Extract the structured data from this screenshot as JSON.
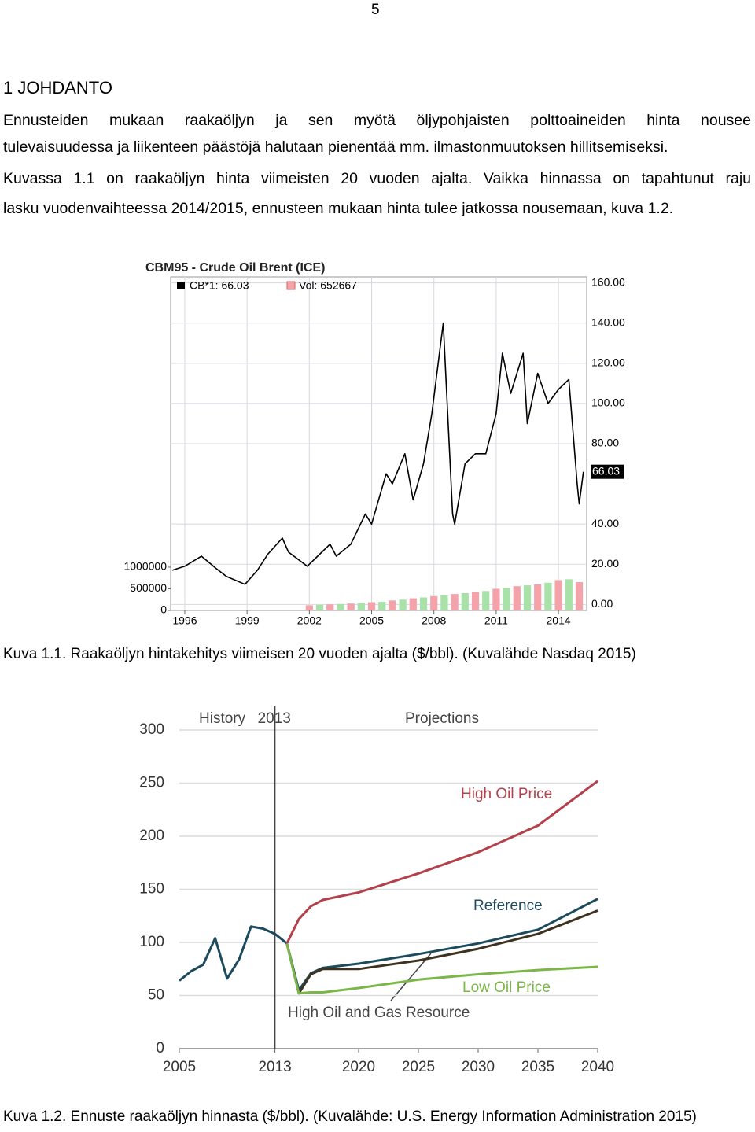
{
  "page_number": "5",
  "heading": "1 JOHDANTO",
  "paragraph_lines": [
    "Ennusteiden mukaan raakaöljyn ja sen myötä öljypohjaisten polttoaineiden hinta nousee",
    "tulevaisuudessa ja liikenteen päästöjä halutaan pienentää mm. ilmastonmuutoksen hillitsemiseksi.",
    "Kuvassa 1.1 on raakaöljyn hinta viimeisten 20 vuoden ajalta. Vaikka hinnassa on tapahtunut raju",
    "lasku vuodenvaihteessa 2014/2015, ennusteen mukaan hinta tulee jatkossa nousemaan, kuva 1.2."
  ],
  "captions": [
    "Kuva 1.1. Raakaöljyn hintakehitys viimeisen 20 vuoden ajalta ($/bbl). (Kuvalähde Nasdaq 2015)",
    "Kuva 1.2. Ennuste raakaöljyn hinnasta ($/bbl). (Kuvalähde: U.S. Energy Information Administration 2015)"
  ],
  "chart_data": [
    {
      "type": "line",
      "title": "CBM95 - Crude Oil Brent (ICE)",
      "xlim": [
        1995.32,
        2015.36
      ],
      "xticks": [
        1996,
        1999,
        2002,
        2005,
        2008,
        2011,
        2014
      ],
      "ylim": [
        -3,
        163
      ],
      "yticks": [
        {
          "value": 0,
          "label": "0.00"
        },
        {
          "value": 20,
          "label": "20.00"
        },
        {
          "value": 40,
          "label": "40.00"
        },
        {
          "value": 80,
          "label": "80.00"
        },
        {
          "value": 100,
          "label": "100.00"
        },
        {
          "value": 120,
          "label": "120.00"
        },
        {
          "value": 140,
          "label": "140.00"
        },
        {
          "value": 160,
          "label": "160.00"
        }
      ],
      "y2lim": [
        0,
        7700000
      ],
      "y2ticks": [
        0,
        500000,
        1000000
      ],
      "grid": true,
      "last_value_tag": 66.03,
      "series": [
        {
          "name": "CB*1: 66.03",
          "color": "#000000",
          "x": [
            1995.4,
            1996,
            1996.8,
            1997.5,
            1998,
            1998.9,
            1999.5,
            2000,
            2000.7,
            2001,
            2001.9,
            2002.5,
            2003,
            2003.3,
            2004,
            2004.7,
            2005,
            2005.7,
            2006,
            2006.6,
            2007,
            2007.5,
            2007.9,
            2008.45,
            2008.9,
            2009,
            2009.5,
            2010,
            2010.5,
            2011,
            2011.3,
            2011.7,
            2012,
            2012.3,
            2012.5,
            2013,
            2013.5,
            2014,
            2014.5,
            2014.9,
            2015,
            2015.2
          ],
          "values": [
            17,
            19,
            24,
            18,
            14,
            10,
            17,
            25,
            33,
            26,
            19,
            25,
            30,
            24,
            30,
            45,
            40,
            65,
            60,
            75,
            52,
            70,
            95,
            140,
            45,
            40,
            70,
            75,
            75,
            95,
            125,
            105,
            115,
            125,
            90,
            115,
            100,
            107,
            112,
            60,
            50,
            66.03
          ]
        },
        {
          "name": "Vol: 652667",
          "color": "#f4a3ab",
          "axis": "y2",
          "x": [
            2002,
            2002.5,
            2003,
            2003.5,
            2004,
            2004.5,
            2005,
            2005.5,
            2006,
            2006.5,
            2007,
            2007.5,
            2008,
            2008.5,
            2009,
            2009.5,
            2010,
            2010.5,
            2011,
            2011.5,
            2012,
            2012.5,
            2013,
            2013.5,
            2014,
            2014.5,
            2015
          ],
          "values": [
            120000,
            130000,
            140000,
            150000,
            160000,
            170000,
            190000,
            200000,
            230000,
            250000,
            280000,
            300000,
            330000,
            350000,
            380000,
            400000,
            430000,
            450000,
            500000,
            520000,
            560000,
            580000,
            600000,
            640000,
            700000,
            720000,
            652667
          ]
        }
      ]
    },
    {
      "type": "line",
      "xlim": [
        2005,
        2040
      ],
      "xticks": [
        2005,
        2013,
        2020,
        2025,
        2030,
        2035,
        2040
      ],
      "ylim": [
        0,
        300
      ],
      "yticks": [
        0,
        50,
        100,
        150,
        200,
        250,
        300
      ],
      "grid": true,
      "divider": 2013,
      "projections_label": "Projections",
      "series": [
        {
          "name": "History",
          "color": "#1d4b5e",
          "x": [
            2005,
            2006,
            2007,
            2008,
            2009,
            2010,
            2011,
            2012,
            2013,
            2014
          ],
          "values": [
            64,
            73,
            79,
            104,
            66,
            84,
            115,
            113,
            108,
            99
          ]
        },
        {
          "name": "High Oil Price",
          "color": "#b3404a",
          "x": [
            2014,
            2015,
            2016,
            2017,
            2020,
            2025,
            2030,
            2035,
            2040
          ],
          "values": [
            99,
            122,
            134,
            140,
            147,
            165,
            185,
            210,
            252
          ]
        },
        {
          "name": "Reference",
          "color": "#1d4b5e",
          "x": [
            2014,
            2015,
            2016,
            2017,
            2020,
            2025,
            2030,
            2035,
            2040
          ],
          "values": [
            99,
            55,
            71,
            76,
            80,
            89,
            99,
            112,
            141
          ]
        },
        {
          "name": "High Oil and Gas Resource",
          "color": "#3e3220",
          "x": [
            2014,
            2015,
            2016,
            2017,
            2020,
            2025,
            2030,
            2035,
            2040
          ],
          "values": [
            99,
            52,
            70,
            75,
            75,
            83,
            94,
            108,
            130
          ]
        },
        {
          "name": "Low Oil Price",
          "color": "#7ab648",
          "x": [
            2014,
            2015,
            2016,
            2017,
            2020,
            2025,
            2030,
            2035,
            2040
          ],
          "values": [
            99,
            52,
            53,
            53,
            57,
            65,
            70,
            74,
            77
          ]
        }
      ]
    }
  ]
}
